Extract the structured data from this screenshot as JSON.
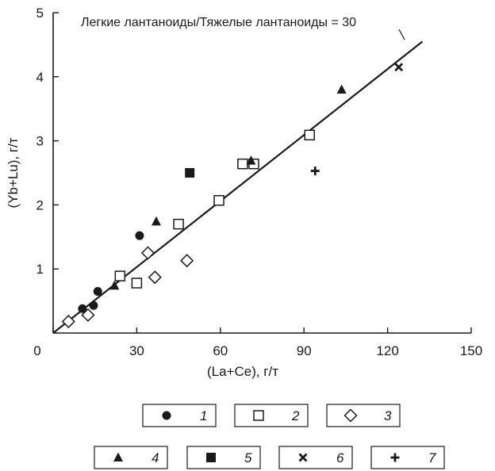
{
  "chart_data": {
    "type": "scatter",
    "xlabel": "(La+Ce), г/т",
    "ylabel": "(Yb+Lu), г/т",
    "xlim": [
      0,
      150
    ],
    "ylim": [
      0,
      5
    ],
    "x_ticks": [
      0,
      30,
      60,
      90,
      120,
      150
    ],
    "x_tick_labels": [
      "0",
      "30",
      "60",
      "90",
      "120",
      "150"
    ],
    "y_ticks": [
      1,
      2,
      3,
      4,
      5
    ],
    "y_tick_labels": [
      "1",
      "2",
      "3",
      "4",
      "5"
    ],
    "grid": false,
    "annotation": "Легкие лантаноиды/Тяжелые лантаноиды = 30",
    "trend_line": {
      "x": [
        0,
        132.5
      ],
      "y": [
        0,
        4.55
      ]
    },
    "legend_position": "bottom",
    "series": [
      {
        "name": "1",
        "marker": "filled-circle",
        "points": [
          [
            10.5,
            0.38
          ],
          [
            14.5,
            0.43
          ],
          [
            16,
            0.65
          ],
          [
            31,
            1.52
          ]
        ]
      },
      {
        "name": "2",
        "marker": "open-square",
        "points": [
          [
            24,
            0.89
          ],
          [
            30,
            0.78
          ],
          [
            45,
            1.7
          ],
          [
            59.5,
            2.07
          ],
          [
            68,
            2.64
          ],
          [
            72,
            2.64
          ],
          [
            92,
            3.09
          ]
        ]
      },
      {
        "name": "3",
        "marker": "open-diamond",
        "points": [
          [
            5.5,
            0.18
          ],
          [
            12.5,
            0.28
          ],
          [
            34,
            1.25
          ],
          [
            36.5,
            0.87
          ],
          [
            48,
            1.13
          ]
        ]
      },
      {
        "name": "4",
        "marker": "filled-triangle",
        "points": [
          [
            22,
            0.74
          ],
          [
            37,
            1.74
          ],
          [
            71,
            2.69
          ],
          [
            103.5,
            3.8
          ]
        ]
      },
      {
        "name": "5",
        "marker": "filled-square",
        "points": [
          [
            49,
            2.5
          ]
        ]
      },
      {
        "name": "6",
        "marker": "x-cross",
        "points": [
          [
            124,
            4.15
          ]
        ]
      },
      {
        "name": "7",
        "marker": "plus",
        "points": [
          [
            94,
            2.53
          ]
        ]
      }
    ]
  }
}
